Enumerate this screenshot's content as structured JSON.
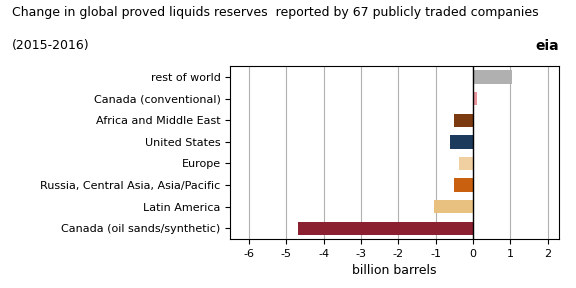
{
  "chart_data": {
    "type": "bar",
    "orientation": "horizontal",
    "title": "Change in global proved liquids reserves  reported by 67 publicly traded companies",
    "subtitle": "(2015-2016)",
    "x_label": "billion barrels",
    "annotations": [
      "eia"
    ],
    "categories": [
      "rest of world",
      "Canada (conventional)",
      "Africa and Middle East",
      "United States",
      "Europe",
      "Russia, Central Asia, Asia/Pacific",
      "Latin America",
      "Canada (oil sands/synthetic)"
    ],
    "values": [
      1.05,
      0.1,
      -0.5,
      -0.62,
      -0.38,
      -0.52,
      -1.05,
      -4.7
    ],
    "colors": [
      "#b0b0b0",
      "#e8959d",
      "#7b3a10",
      "#1b3a5c",
      "#f0cfa0",
      "#c86010",
      "#e8c080",
      "#8b2030"
    ],
    "xlim": [
      -6.5,
      2.3
    ],
    "xticks": [
      -6,
      -5,
      -4,
      -3,
      -2,
      -1,
      0,
      1,
      2
    ],
    "grid": true
  }
}
